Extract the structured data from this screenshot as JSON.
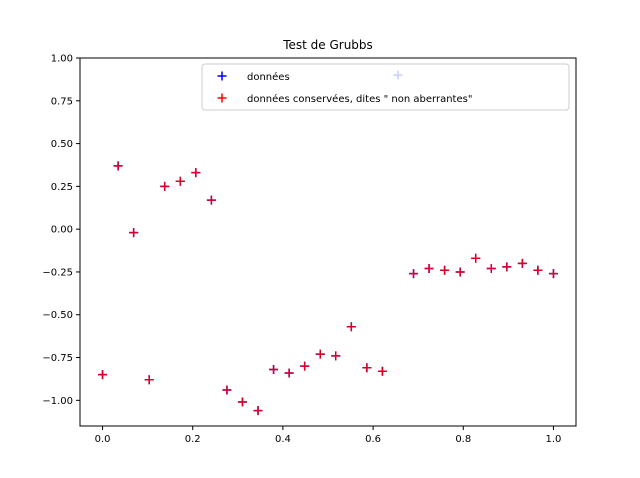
{
  "chart_data": {
    "type": "scatter",
    "title": "Test de Grubbs",
    "xlabel": "",
    "ylabel": "",
    "xlim": [
      -0.05,
      1.05
    ],
    "ylim": [
      -1.15,
      1.0
    ],
    "xticks": [
      0.0,
      0.2,
      0.4,
      0.6,
      0.8,
      1.0
    ],
    "xtick_labels": [
      "0.0",
      "0.2",
      "0.4",
      "0.6",
      "0.8",
      "1.0"
    ],
    "yticks": [
      1.0,
      0.75,
      0.5,
      0.25,
      0.0,
      -0.25,
      -0.5,
      -0.75,
      -1.0
    ],
    "ytick_labels": [
      "1.00",
      "0.75",
      "0.50",
      "0.25",
      "0.00",
      "−0.25",
      "−0.50",
      "−0.75",
      "−1.00"
    ],
    "grid": false,
    "legend_position": "top-right",
    "series": [
      {
        "name": "données",
        "color": "#0000ff",
        "marker": "+",
        "x": [
          0.0,
          0.0345,
          0.069,
          0.1034,
          0.1379,
          0.1724,
          0.2069,
          0.2414,
          0.2759,
          0.3103,
          0.3448,
          0.3793,
          0.4138,
          0.4483,
          0.4828,
          0.5172,
          0.5517,
          0.5862,
          0.6207,
          0.6552,
          0.6897,
          0.7241,
          0.7586,
          0.7931,
          0.8276,
          0.8621,
          0.8966,
          0.931,
          0.9655,
          1.0
        ],
        "y": [
          -0.85,
          0.37,
          -0.02,
          -0.88,
          0.25,
          0.28,
          0.33,
          0.17,
          -0.94,
          -1.01,
          -1.06,
          -0.82,
          -0.84,
          -0.8,
          -0.73,
          -0.74,
          -0.57,
          -0.81,
          -0.83,
          0.9,
          -0.26,
          -0.23,
          -0.24,
          -0.25,
          -0.17,
          -0.23,
          -0.22,
          -0.2,
          -0.24,
          -0.26
        ]
      },
      {
        "name": "données conservées, dites \" non aberrantes\"",
        "color": "#ff0000",
        "marker": "+",
        "x": [
          0.0,
          0.0345,
          0.069,
          0.1034,
          0.1379,
          0.1724,
          0.2069,
          0.2414,
          0.2759,
          0.3103,
          0.3448,
          0.3793,
          0.4138,
          0.4483,
          0.4828,
          0.5172,
          0.5517,
          0.5862,
          0.6207,
          0.6897,
          0.7241,
          0.7586,
          0.7931,
          0.8276,
          0.8621,
          0.8966,
          0.931,
          0.9655,
          1.0
        ],
        "y": [
          -0.85,
          0.37,
          -0.02,
          -0.88,
          0.25,
          0.28,
          0.33,
          0.17,
          -0.94,
          -1.01,
          -1.06,
          -0.82,
          -0.84,
          -0.8,
          -0.73,
          -0.74,
          -0.57,
          -0.81,
          -0.83,
          -0.26,
          -0.23,
          -0.24,
          -0.25,
          -0.17,
          -0.23,
          -0.22,
          -0.2,
          -0.24,
          -0.26
        ]
      }
    ]
  }
}
